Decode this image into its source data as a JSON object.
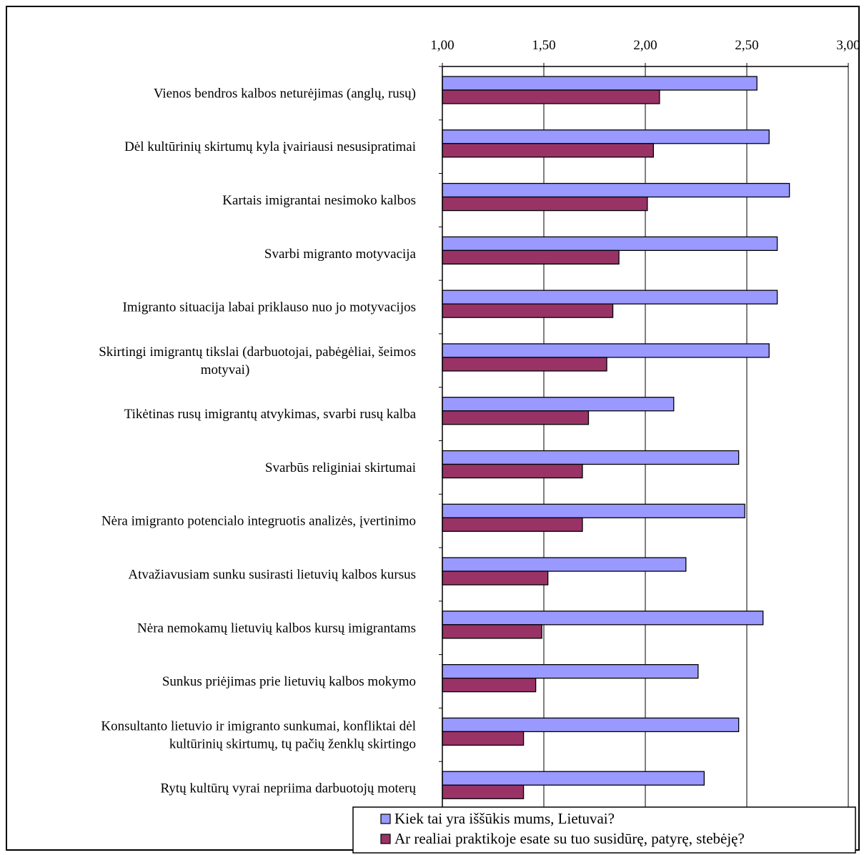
{
  "chart_data": {
    "type": "bar",
    "orientation": "horizontal",
    "xlim": [
      1.0,
      3.0
    ],
    "xticks": [
      "1,00",
      "1,50",
      "2,00",
      "2,50",
      "3,00"
    ],
    "xtick_values": [
      1.0,
      1.5,
      2.0,
      2.5,
      3.0
    ],
    "grid": "vertical major gridlines",
    "legend_position": "bottom-right",
    "categories": [
      [
        "Vienos bendros kalbos neturėjimas (anglų, rusų)"
      ],
      [
        "Dėl kultūrinių skirtumų kyla įvairiausi nesusipratimai"
      ],
      [
        "Kartais imigrantai nesimoko kalbos"
      ],
      [
        "Svarbi migranto motyvacija"
      ],
      [
        "Imigranto situacija labai priklauso nuo jo motyvacijos"
      ],
      [
        "Skirtingi imigrantų tikslai (darbuotojai, pabėgėliai, šeimos",
        "motyvai)"
      ],
      [
        "Tikėtinas rusų imigrantų atvykimas, svarbi rusų kalba"
      ],
      [
        "Svarbūs religiniai skirtumai"
      ],
      [
        "Nėra imigranto potencialo integruotis analizės, įvertinimo"
      ],
      [
        "Atvažiavusiam sunku susirasti lietuvių kalbos kursus"
      ],
      [
        "Nėra nemokamų lietuvių kalbos kursų imigrantams"
      ],
      [
        "Sunkus priėjimas prie lietuvių kalbos mokymo"
      ],
      [
        "Konsultanto lietuvio ir imigranto sunkumai, konfliktai dėl",
        "kultūrinių skirtumų, tų pačių ženklų skirtingo"
      ],
      [
        "Rytų kultūrų vyrai nepriima darbuotojų moterų"
      ]
    ],
    "series": [
      {
        "name": "Kiek tai yra iššūkis mums, Lietuvai?",
        "color": "#9999ff",
        "values": [
          2.55,
          2.61,
          2.71,
          2.65,
          2.65,
          2.61,
          2.14,
          2.46,
          2.49,
          2.2,
          2.58,
          2.26,
          2.46,
          2.29
        ]
      },
      {
        "name": "Ar realiai praktikoje esate su tuo susidūrę, patyrę, stebėję?",
        "color": "#993366",
        "values": [
          2.07,
          2.04,
          2.01,
          1.87,
          1.84,
          1.81,
          1.72,
          1.69,
          1.69,
          1.52,
          1.49,
          1.46,
          1.4,
          1.4
        ]
      }
    ]
  }
}
